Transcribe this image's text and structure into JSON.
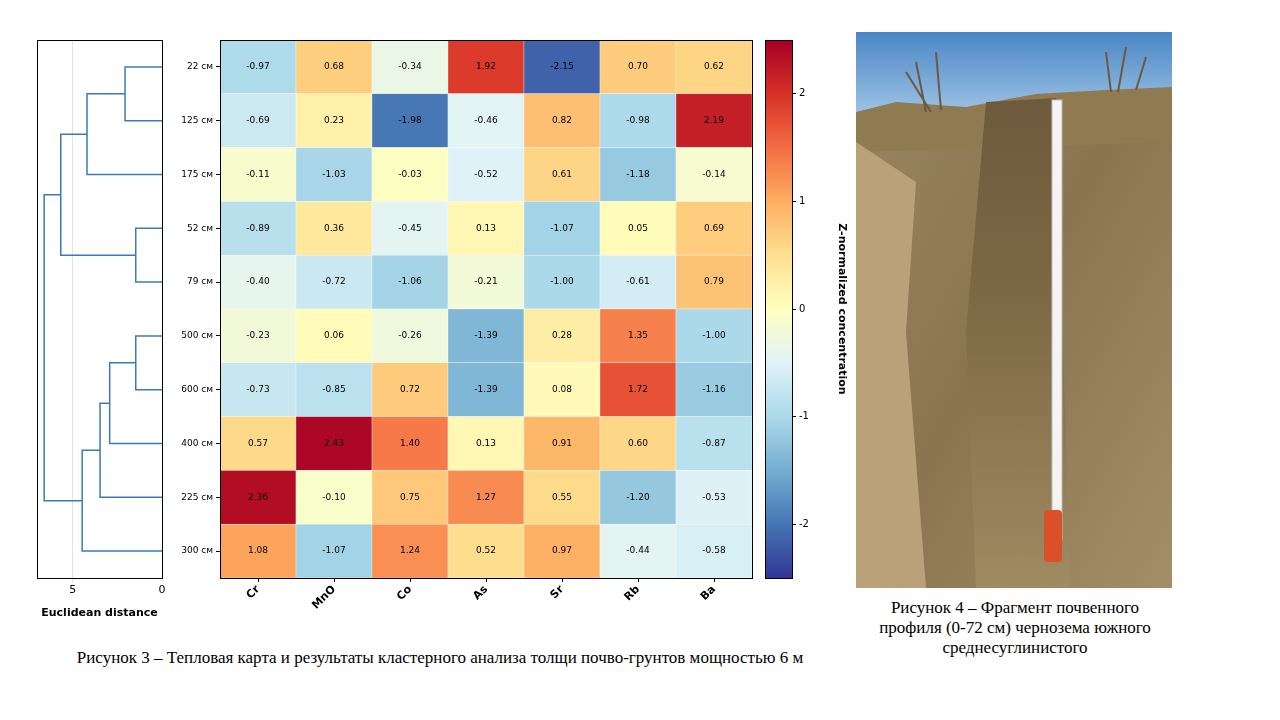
{
  "chart_data": {
    "type": "heatmap",
    "rows": [
      "22 см",
      "125 см",
      "175 см",
      "52 см",
      "79 см",
      "500 см",
      "600 см",
      "400 см",
      "225 см",
      "300 см"
    ],
    "columns": [
      "Cr",
      "MnO",
      "Co",
      "As",
      "Sr",
      "Rb",
      "Ba"
    ],
    "cells": [
      [
        -0.97,
        0.68,
        -0.34,
        1.92,
        -2.15,
        0.7,
        0.62
      ],
      [
        -0.69,
        0.23,
        -1.98,
        -0.46,
        0.82,
        -0.98,
        2.19
      ],
      [
        -0.11,
        -1.03,
        -0.03,
        -0.52,
        0.61,
        -1.18,
        -0.14
      ],
      [
        -0.89,
        0.36,
        -0.45,
        0.13,
        -1.07,
        0.05,
        0.69
      ],
      [
        -0.4,
        -0.72,
        -1.06,
        -0.21,
        -1.0,
        -0.61,
        0.79
      ],
      [
        -0.23,
        0.06,
        -0.26,
        -1.39,
        0.28,
        1.35,
        -1.0
      ],
      [
        -0.73,
        -0.85,
        0.72,
        -1.39,
        0.08,
        1.72,
        -1.16
      ],
      [
        0.57,
        2.43,
        1.4,
        0.13,
        0.91,
        0.6,
        -0.87
      ],
      [
        2.36,
        -0.1,
        0.75,
        1.27,
        0.55,
        -1.2,
        -0.53
      ],
      [
        1.08,
        -1.07,
        1.24,
        0.52,
        0.97,
        -0.44,
        -0.58
      ]
    ],
    "data_labels": true,
    "colorbar": {
      "label": "Z-normalized concentration",
      "range": [
        -2.5,
        2.5
      ],
      "ticks": [
        -2,
        -1,
        0,
        1,
        2
      ]
    },
    "dendrogram": {
      "xlabel": "Euclidean distance",
      "xlim": [
        7,
        0
      ],
      "xticks": [
        5,
        0
      ],
      "grid": true,
      "merges": [
        {
          "a": 3,
          "b": 4,
          "height": 1.47
        },
        {
          "a": 5,
          "b": 6,
          "height": 1.47
        },
        {
          "a": 0,
          "b": 1,
          "height": 2.07
        },
        {
          "a": 11,
          "b": 7,
          "height": 2.93
        },
        {
          "a": 13,
          "b": 8,
          "height": 3.47
        },
        {
          "a": 12,
          "b": 2,
          "height": 4.2
        },
        {
          "a": 14,
          "b": 9,
          "height": 4.47
        },
        {
          "a": 15,
          "b": 10,
          "height": 5.67
        },
        {
          "a": 17,
          "b": 16,
          "height": 6.6
        }
      ]
    }
  },
  "captions": {
    "figure3": "Рисунок 3 – Тепловая карта и результаты кластерного анализа толщи почво-грунтов мощностью 6 м",
    "figure4": "Рисунок 4 – Фрагмент почвенного профиля (0-72 см) чернозема южного среднесуглинистого"
  }
}
